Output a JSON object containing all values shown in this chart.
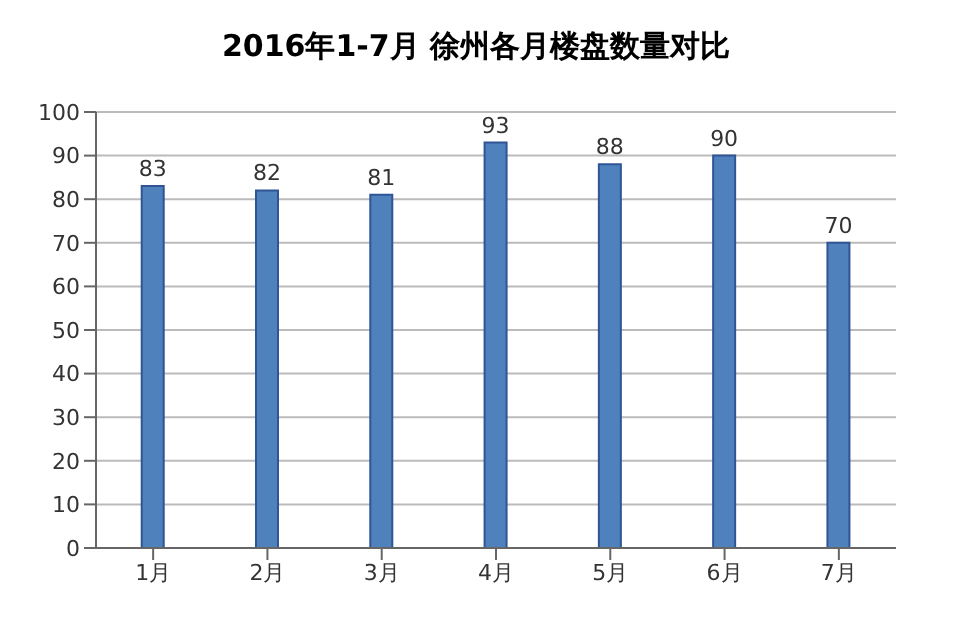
{
  "chart_data": {
    "type": "bar",
    "title": "2016年1-7月 徐州各月楼盘数量对比",
    "categories": [
      "1月",
      "2月",
      "3月",
      "4月",
      "5月",
      "6月",
      "7月"
    ],
    "values": [
      83,
      82,
      81,
      93,
      88,
      90,
      70
    ],
    "color": "#4f81bd",
    "ylim": [
      0,
      100
    ],
    "yticks": [
      0,
      10,
      20,
      30,
      40,
      50,
      60,
      70,
      80,
      90,
      100
    ],
    "grid": "y",
    "data_labels": true
  }
}
